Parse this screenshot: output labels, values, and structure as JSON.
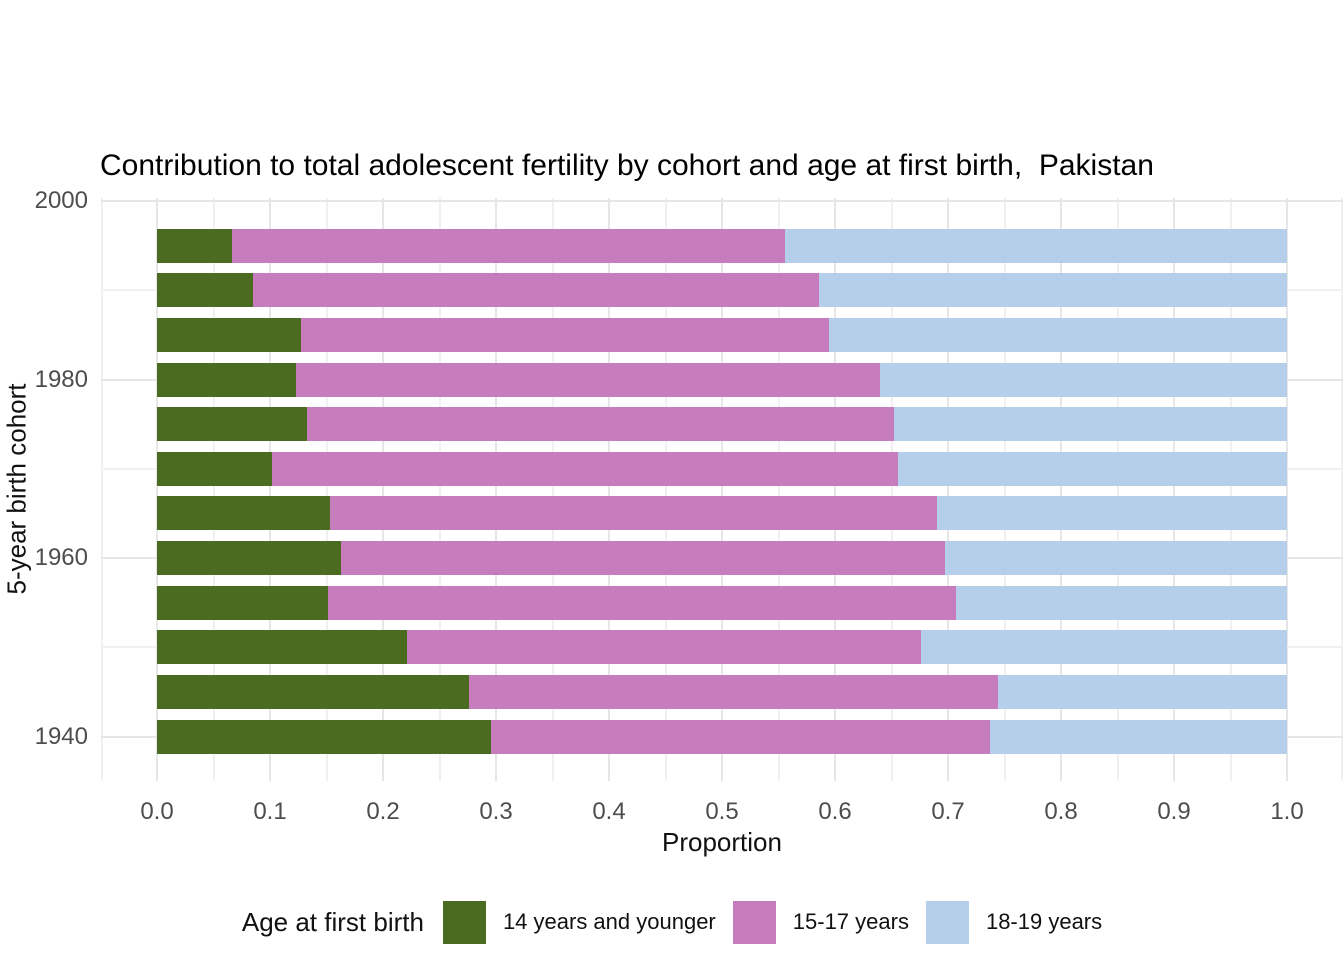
{
  "chart_data": {
    "type": "bar",
    "orientation": "horizontal",
    "stacked": true,
    "title": "Contribution to total adolescent fertility by cohort and age at first birth,  Pakistan",
    "xlabel": "Proportion",
    "ylabel": "5-year birth cohort",
    "legend_title": "Age at first birth",
    "legend_position": "bottom",
    "xlim": [
      0,
      1
    ],
    "x_major_ticks": [
      0,
      0.1,
      0.2,
      0.3,
      0.4,
      0.5,
      0.6,
      0.7,
      0.8,
      0.9,
      1.0
    ],
    "x_tick_labels": [
      "0.0",
      "0.1",
      "0.2",
      "0.3",
      "0.4",
      "0.5",
      "0.6",
      "0.7",
      "0.8",
      "0.9",
      "1.0"
    ],
    "y_major_ticks": [
      1940,
      1960,
      1980,
      2000
    ],
    "y_minor_ticks": [
      1950,
      1970,
      1990
    ],
    "grid": "major+minor",
    "categories": [
      1940,
      1945,
      1950,
      1955,
      1960,
      1965,
      1970,
      1975,
      1980,
      1985,
      1990,
      1995
    ],
    "series": [
      {
        "name": "14 years and younger",
        "color": "#4A6B20",
        "values": [
          0.296,
          0.276,
          0.221,
          0.151,
          0.163,
          0.153,
          0.102,
          0.133,
          0.123,
          0.127,
          0.085,
          0.066
        ]
      },
      {
        "name": "15-17 years",
        "color": "#C67CBD",
        "values": [
          0.441,
          0.468,
          0.455,
          0.556,
          0.534,
          0.537,
          0.554,
          0.519,
          0.517,
          0.468,
          0.501,
          0.49
        ]
      },
      {
        "name": "18-19 years",
        "color": "#B5CFEA",
        "values": [
          0.263,
          0.256,
          0.324,
          0.293,
          0.303,
          0.31,
          0.344,
          0.348,
          0.36,
          0.405,
          0.414,
          0.444
        ]
      }
    ]
  },
  "colors": {
    "major_grid": "#E6E6E6",
    "minor_grid": "#F0F0F0",
    "tick_text": "#4D4D4D",
    "title_text": "#000000",
    "background": "#FFFFFF"
  }
}
